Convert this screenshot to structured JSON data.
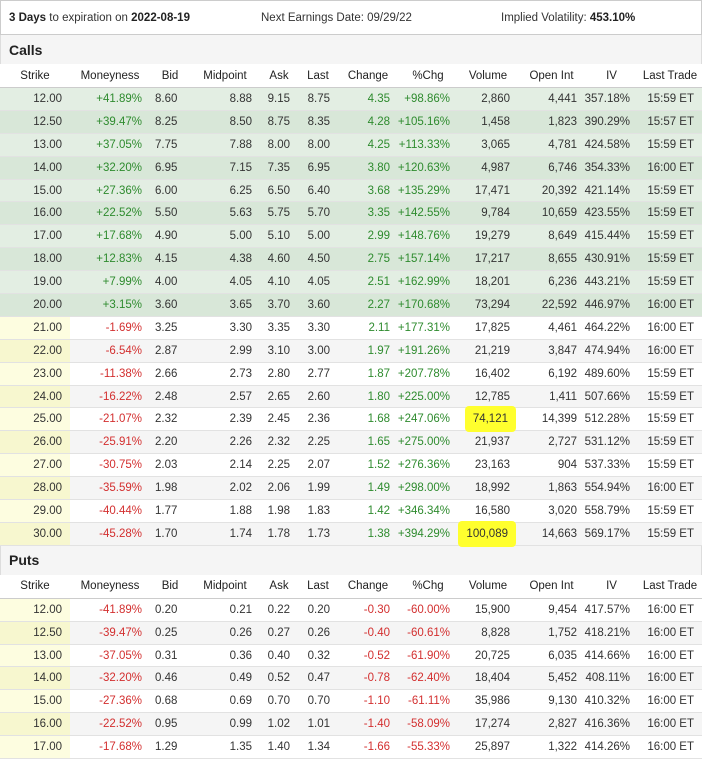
{
  "header": {
    "days": "3 Days",
    "expiration_label": "to expiration on",
    "expiration_date": "2022-08-19",
    "earnings": "Next Earnings Date: 09/29/22",
    "iv_label": "Implied Volatility:",
    "iv_value": "453.10%"
  },
  "sections": [
    {
      "title": "Calls",
      "columns": [
        "Strike",
        "Moneyness",
        "Bid",
        "Midpoint",
        "Ask",
        "Last",
        "Change",
        "%Chg",
        "Volume",
        "Open Int",
        "IV",
        "Last Trade"
      ],
      "highlighted_cells": [
        [
          14,
          8
        ],
        [
          19,
          8
        ]
      ],
      "rows": [
        [
          "12.00",
          "+41.89%",
          "8.60",
          "8.88",
          "9.15",
          "8.75",
          "4.35",
          "+98.86%",
          "2,860",
          "4,441",
          "357.18%",
          "15:59 ET"
        ],
        [
          "12.50",
          "+39.47%",
          "8.25",
          "8.50",
          "8.75",
          "8.35",
          "4.28",
          "+105.16%",
          "1,458",
          "1,823",
          "390.29%",
          "15:57 ET"
        ],
        [
          "13.00",
          "+37.05%",
          "7.75",
          "7.88",
          "8.00",
          "8.00",
          "4.25",
          "+113.33%",
          "3,065",
          "4,781",
          "424.58%",
          "15:59 ET"
        ],
        [
          "14.00",
          "+32.20%",
          "6.95",
          "7.15",
          "7.35",
          "6.95",
          "3.80",
          "+120.63%",
          "4,987",
          "6,746",
          "354.33%",
          "16:00 ET"
        ],
        [
          "15.00",
          "+27.36%",
          "6.00",
          "6.25",
          "6.50",
          "6.40",
          "3.68",
          "+135.29%",
          "17,471",
          "20,392",
          "421.14%",
          "15:59 ET"
        ],
        [
          "16.00",
          "+22.52%",
          "5.50",
          "5.63",
          "5.75",
          "5.70",
          "3.35",
          "+142.55%",
          "9,784",
          "10,659",
          "423.55%",
          "15:59 ET"
        ],
        [
          "17.00",
          "+17.68%",
          "4.90",
          "5.00",
          "5.10",
          "5.00",
          "2.99",
          "+148.76%",
          "19,279",
          "8,649",
          "415.44%",
          "15:59 ET"
        ],
        [
          "18.00",
          "+12.83%",
          "4.15",
          "4.38",
          "4.60",
          "4.50",
          "2.75",
          "+157.14%",
          "17,217",
          "8,655",
          "430.91%",
          "15:59 ET"
        ],
        [
          "19.00",
          "+7.99%",
          "4.00",
          "4.05",
          "4.10",
          "4.05",
          "2.51",
          "+162.99%",
          "18,201",
          "6,236",
          "443.21%",
          "15:59 ET"
        ],
        [
          "20.00",
          "+3.15%",
          "3.60",
          "3.65",
          "3.70",
          "3.60",
          "2.27",
          "+170.68%",
          "73,294",
          "22,592",
          "446.97%",
          "16:00 ET"
        ],
        [
          "21.00",
          "-1.69%",
          "3.25",
          "3.30",
          "3.35",
          "3.30",
          "2.11",
          "+177.31%",
          "17,825",
          "4,461",
          "464.22%",
          "16:00 ET"
        ],
        [
          "22.00",
          "-6.54%",
          "2.87",
          "2.99",
          "3.10",
          "3.00",
          "1.97",
          "+191.26%",
          "21,219",
          "3,847",
          "474.94%",
          "16:00 ET"
        ],
        [
          "23.00",
          "-11.38%",
          "2.66",
          "2.73",
          "2.80",
          "2.77",
          "1.87",
          "+207.78%",
          "16,402",
          "6,192",
          "489.60%",
          "15:59 ET"
        ],
        [
          "24.00",
          "-16.22%",
          "2.48",
          "2.57",
          "2.65",
          "2.60",
          "1.80",
          "+225.00%",
          "12,785",
          "1,411",
          "507.66%",
          "15:59 ET"
        ],
        [
          "25.00",
          "-21.07%",
          "2.32",
          "2.39",
          "2.45",
          "2.36",
          "1.68",
          "+247.06%",
          "74,121",
          "14,399",
          "512.28%",
          "15:59 ET"
        ],
        [
          "26.00",
          "-25.91%",
          "2.20",
          "2.26",
          "2.32",
          "2.25",
          "1.65",
          "+275.00%",
          "21,937",
          "2,727",
          "531.12%",
          "15:59 ET"
        ],
        [
          "27.00",
          "-30.75%",
          "2.03",
          "2.14",
          "2.25",
          "2.07",
          "1.52",
          "+276.36%",
          "23,163",
          "904",
          "537.33%",
          "15:59 ET"
        ],
        [
          "28.00",
          "-35.59%",
          "1.98",
          "2.02",
          "2.06",
          "1.99",
          "1.49",
          "+298.00%",
          "18,992",
          "1,863",
          "554.94%",
          "16:00 ET"
        ],
        [
          "29.00",
          "-40.44%",
          "1.77",
          "1.88",
          "1.98",
          "1.83",
          "1.42",
          "+346.34%",
          "16,580",
          "3,020",
          "558.79%",
          "15:59 ET"
        ],
        [
          "30.00",
          "-45.28%",
          "1.70",
          "1.74",
          "1.78",
          "1.73",
          "1.38",
          "+394.29%",
          "100,089",
          "14,663",
          "569.17%",
          "15:59 ET"
        ]
      ]
    },
    {
      "title": "Puts",
      "columns": [
        "Strike",
        "Moneyness",
        "Bid",
        "Midpoint",
        "Ask",
        "Last",
        "Change",
        "%Chg",
        "Volume",
        "Open Int",
        "IV",
        "Last Trade"
      ],
      "highlighted_cells": [],
      "rows": [
        [
          "12.00",
          "-41.89%",
          "0.20",
          "0.21",
          "0.22",
          "0.20",
          "-0.30",
          "-60.00%",
          "15,900",
          "9,454",
          "417.57%",
          "16:00 ET"
        ],
        [
          "12.50",
          "-39.47%",
          "0.25",
          "0.26",
          "0.27",
          "0.26",
          "-0.40",
          "-60.61%",
          "8,828",
          "1,752",
          "418.21%",
          "16:00 ET"
        ],
        [
          "13.00",
          "-37.05%",
          "0.31",
          "0.36",
          "0.40",
          "0.32",
          "-0.52",
          "-61.90%",
          "20,725",
          "6,035",
          "414.66%",
          "16:00 ET"
        ],
        [
          "14.00",
          "-32.20%",
          "0.46",
          "0.49",
          "0.52",
          "0.47",
          "-0.78",
          "-62.40%",
          "18,404",
          "5,452",
          "408.11%",
          "16:00 ET"
        ],
        [
          "15.00",
          "-27.36%",
          "0.68",
          "0.69",
          "0.70",
          "0.70",
          "-1.10",
          "-61.11%",
          "35,986",
          "9,130",
          "410.32%",
          "16:00 ET"
        ],
        [
          "16.00",
          "-22.52%",
          "0.95",
          "0.99",
          "1.02",
          "1.01",
          "-1.40",
          "-58.09%",
          "17,274",
          "2,827",
          "416.36%",
          "16:00 ET"
        ],
        [
          "17.00",
          "-17.68%",
          "1.29",
          "1.35",
          "1.40",
          "1.34",
          "-1.66",
          "-55.33%",
          "25,897",
          "1,322",
          "414.26%",
          "16:00 ET"
        ]
      ]
    }
  ]
}
